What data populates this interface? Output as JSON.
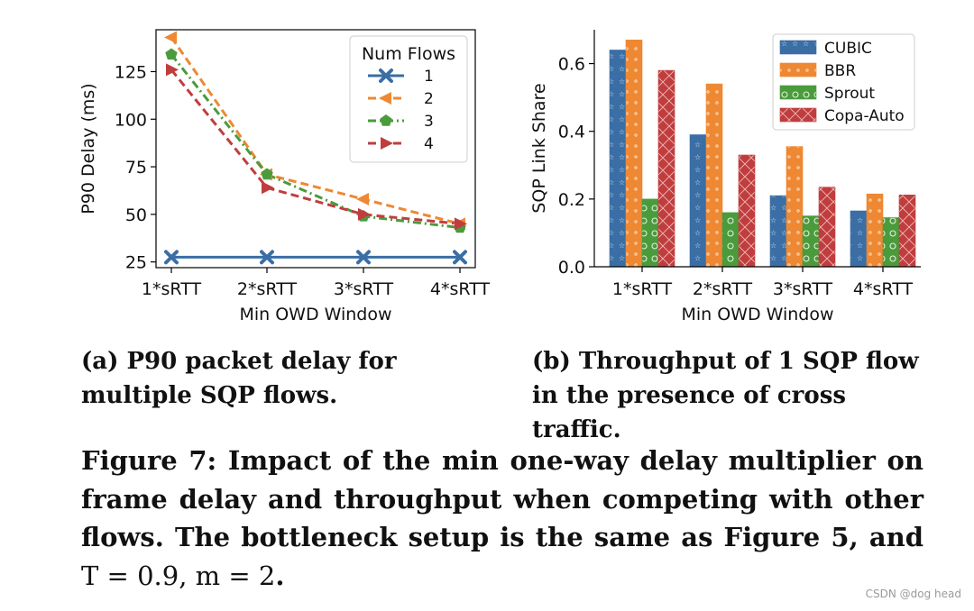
{
  "chart_data": [
    {
      "type": "line",
      "xlabel": "Min OWD Window",
      "ylabel": "P90 Delay (ms)",
      "categories": [
        "1*sRTT",
        "2*sRTT",
        "3*sRTT",
        "4*sRTT"
      ],
      "ylim": [
        22,
        147
      ],
      "yticks": [
        25,
        50,
        75,
        100,
        125
      ],
      "grid": false,
      "legend": {
        "title": "Num Flows",
        "placement": "top-right"
      },
      "series": [
        {
          "name": "1",
          "values": [
            27.5,
            27.5,
            27.5,
            27.5
          ],
          "color": "#3a6ea5",
          "marker": "x",
          "dash": "solid"
        },
        {
          "name": "2",
          "values": [
            143,
            71,
            58,
            45
          ],
          "color": "#ee8833",
          "marker": "triangle-left",
          "dash": "dashed"
        },
        {
          "name": "3",
          "values": [
            134,
            71,
            49,
            43
          ],
          "color": "#4a9b3c",
          "marker": "pentagon",
          "dash": "dashdot"
        },
        {
          "name": "4",
          "values": [
            126,
            64,
            50,
            45
          ],
          "color": "#c03d3e",
          "marker": "triangle-right",
          "dash": "dashed"
        }
      ]
    },
    {
      "type": "bar",
      "xlabel": "Min OWD Window",
      "ylabel": "SQP Link Share",
      "categories": [
        "1*sRTT",
        "2*sRTT",
        "3*sRTT",
        "4*sRTT"
      ],
      "ylim": [
        0,
        0.7
      ],
      "yticks": [
        "0.0",
        "0.2",
        "0.4",
        "0.6"
      ],
      "grid": false,
      "legend": {
        "placement": "top-right"
      },
      "series": [
        {
          "name": "CUBIC",
          "values": [
            0.64,
            0.39,
            0.21,
            0.165
          ],
          "color": "#3a6ea5",
          "pattern": "stars"
        },
        {
          "name": "BBR",
          "values": [
            0.67,
            0.54,
            0.355,
            0.215
          ],
          "color": "#ee8833",
          "pattern": "dots"
        },
        {
          "name": "Sprout",
          "values": [
            0.2,
            0.16,
            0.15,
            0.145
          ],
          "color": "#4a9b3c",
          "pattern": "circles"
        },
        {
          "name": "Copa-Auto",
          "values": [
            0.58,
            0.33,
            0.235,
            0.212
          ],
          "color": "#c03d3e",
          "pattern": "crosshatch"
        }
      ]
    }
  ],
  "captions": {
    "a": "(a) P90 packet delay for multiple SQP flows.",
    "b": "(b) Throughput of 1 SQP flow in the presence of cross traffic.",
    "figure_text": "Figure 7: Impact of the min one-way delay multiplier on frame delay and throughput when competing with other flows. The bottleneck setup is the same as Figure 5, and",
    "figure_eq": "T = 0.9, m = 2",
    "figure_end": "."
  },
  "watermark": "CSDN @dog head"
}
